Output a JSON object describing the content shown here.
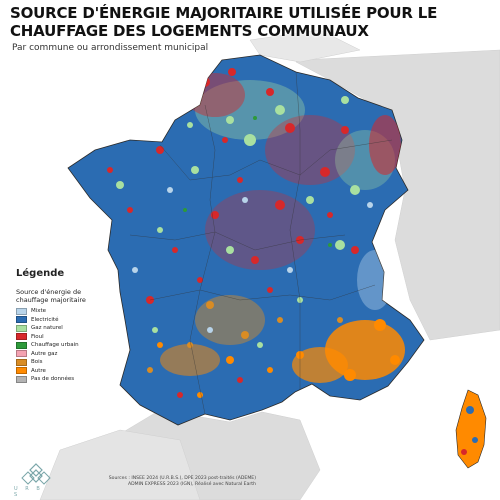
{
  "title": "SOURCE D'ÉNERGIE MAJORITAIRE UTILISÉE POUR LE CHAUFFAGE DES LOGEMENTS COMMUNAUX",
  "subtitle": "Par commune ou arrondissement municipal",
  "legend": {
    "title": "Légende",
    "subtitle": "Source d'énergie de chauffage majoritaire",
    "items": [
      {
        "label": "Mixte",
        "color": "#b8d4ea",
        "icon": "swatch-mixte-icon"
      },
      {
        "label": "Electricité",
        "color": "#2b6cb2",
        "icon": "swatch-electricite-icon"
      },
      {
        "label": "Gaz naturel",
        "color": "#a9e0a0",
        "icon": "swatch-gaz-naturel-icon"
      },
      {
        "label": "Fioul",
        "color": "#d7282a",
        "icon": "swatch-fioul-icon"
      },
      {
        "label": "Chauffage urbain",
        "color": "#2d9a3a",
        "icon": "swatch-chauffage-urbain-icon"
      },
      {
        "label": "Autre gaz",
        "color": "#f4a3b2",
        "icon": "swatch-autre-gaz-icon"
      },
      {
        "label": "Bois",
        "color": "#d98c24",
        "icon": "swatch-bois-icon"
      },
      {
        "label": "Autre",
        "color": "#ff8a00",
        "icon": "swatch-autre-icon"
      },
      {
        "label": "Pas de données",
        "color": "#b3b3b3",
        "icon": "swatch-pas-de-donnees-icon"
      }
    ]
  },
  "logo": {
    "text": "U R B S"
  },
  "credits": [
    "Sources : INSEE 2024 (U.R.B.S.), DPE 2023 post-traités (ADEME)",
    "ADMIN EXPRESS 2023 (IGN), Réalisé avec Natural Earth"
  ],
  "colors": {
    "sea": "#ffffff",
    "neighbour_land": "#dcdcdc",
    "dominant": "#2b6cb2"
  }
}
